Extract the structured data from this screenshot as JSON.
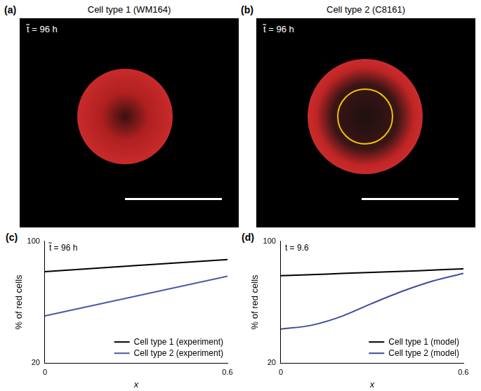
{
  "panels": [
    {
      "panel_label": "(a)",
      "title": "Cell type 1 (WM164)",
      "annotation": "t̃ = 96 h"
    },
    {
      "panel_label": "(b)",
      "title": "Cell type 2 (C8161)",
      "annotation": "t̃ = 96 h"
    }
  ],
  "chart_data": [
    {
      "panel_label": "(c)",
      "type": "line",
      "annotation": "t̃ = 96 h",
      "x_label": "x",
      "y_label": "% of red cells",
      "x": [
        0,
        0.6
      ],
      "xlim": [
        0,
        0.6
      ],
      "xticks": [
        0,
        0.6
      ],
      "ylim": [
        20,
        100
      ],
      "yticks": [
        20,
        100
      ],
      "grid": false,
      "legend": "bottom right",
      "series": [
        {
          "name": "Cell type 1 (experiment)",
          "color": "#000000",
          "values": [
            80,
            88
          ]
        },
        {
          "name": "Cell type 2 (experiment)",
          "color": "#4a5aa8",
          "values": [
            51,
            77
          ]
        }
      ]
    },
    {
      "panel_label": "(d)",
      "type": "line",
      "annotation": "t = 9.6",
      "x_label": "x",
      "y_label": "% of red cells",
      "x": [
        0,
        0.1,
        0.2,
        0.3,
        0.4,
        0.5,
        0.6
      ],
      "xlim": [
        0,
        0.6
      ],
      "xticks": [
        0,
        0.6
      ],
      "ylim": [
        20,
        100
      ],
      "yticks": [
        20,
        100
      ],
      "grid": false,
      "legend": "bottom right",
      "series": [
        {
          "name": "Cell type 1 (model)",
          "color": "#000000",
          "values": [
            77.3,
            78,
            78.8,
            79.5,
            80.2,
            81,
            81.9
          ]
        },
        {
          "name": "Cell type 2 (model)",
          "color": "#3c4ca0",
          "values": [
            42.3,
            44.8,
            50.7,
            59.2,
            67.2,
            73.9,
            78.9
          ]
        }
      ]
    }
  ]
}
